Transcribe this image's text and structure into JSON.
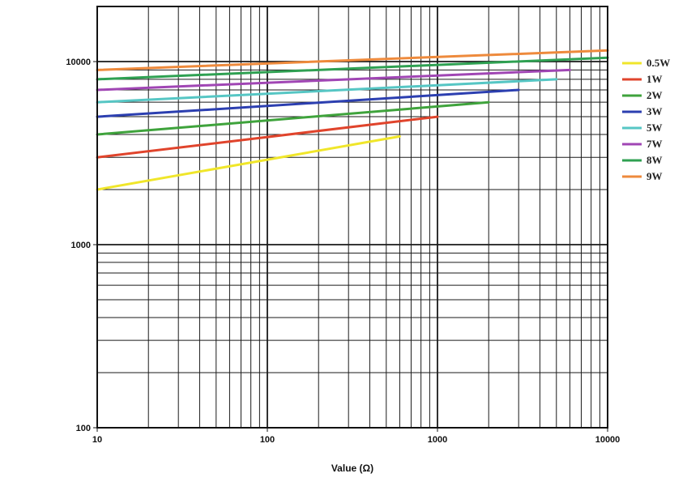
{
  "chart_data": {
    "type": "line",
    "xscale": "log",
    "yscale": "log",
    "xlim": [
      10,
      10000
    ],
    "ylim": [
      100,
      20000
    ],
    "xlabel": "Value (Ω)",
    "ylabel": "",
    "x_ticks": [
      {
        "value": 10,
        "label": "10"
      },
      {
        "value": 100,
        "label": "100"
      },
      {
        "value": 1000,
        "label": "1000"
      },
      {
        "value": 10000,
        "label": "10000"
      }
    ],
    "y_ticks": [
      {
        "value": 100,
        "label": "100"
      },
      {
        "value": 1000,
        "label": "1000"
      },
      {
        "value": 10000,
        "label": "10000"
      }
    ],
    "grid": true,
    "legend_position": "right",
    "series": [
      {
        "name": "0.5W",
        "color": "#f0e62a",
        "x": [
          10,
          600
        ],
        "y": [
          2000,
          3900
        ]
      },
      {
        "name": "1W",
        "color": "#e0442c",
        "x": [
          10,
          1000
        ],
        "y": [
          3000,
          5000
        ]
      },
      {
        "name": "2W",
        "color": "#3fa33c",
        "x": [
          10,
          2000
        ],
        "y": [
          4000,
          6000
        ]
      },
      {
        "name": "3W",
        "color": "#2c3fb0",
        "x": [
          10,
          3000
        ],
        "y": [
          5000,
          7000
        ]
      },
      {
        "name": "5W",
        "color": "#56c6c4",
        "x": [
          10,
          5000
        ],
        "y": [
          6000,
          8000
        ]
      },
      {
        "name": "7W",
        "color": "#a046b4",
        "x": [
          10,
          6000
        ],
        "y": [
          7000,
          9000
        ]
      },
      {
        "name": "8W",
        "color": "#2fa152",
        "x": [
          10,
          10000
        ],
        "y": [
          8000,
          10500
        ]
      },
      {
        "name": "9W",
        "color": "#ee8a3c",
        "x": [
          10,
          10000
        ],
        "y": [
          9000,
          11500
        ]
      }
    ]
  }
}
